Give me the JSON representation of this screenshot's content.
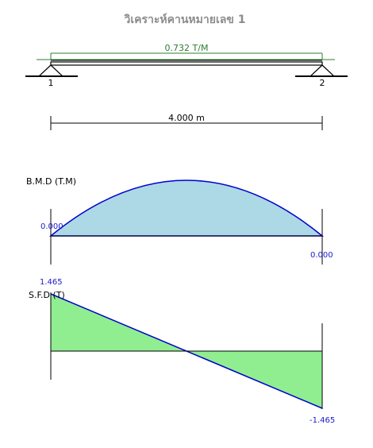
{
  "title": "วิเคราะห์คานหมายเลข 1",
  "load": {
    "label": "0.732 T/M",
    "value": 0.732,
    "unit": "T/M"
  },
  "supports": [
    {
      "label": "1"
    },
    {
      "label": "2"
    }
  ],
  "span": {
    "label": "4.000 m",
    "value": 4.0,
    "unit": "m"
  },
  "colors": {
    "title": "#8c8c8c",
    "load": "#2e7d32",
    "bmd_fill": "#add8e6",
    "sfd_fill": "#90ee90",
    "curve": "#0000cd",
    "value_text": "#1a1acc"
  },
  "chart_data": [
    {
      "type": "area",
      "title": "B.M.D (T.M)",
      "x": [
        0,
        4
      ],
      "values": [
        0.0,
        0.0
      ],
      "value_labels": [
        "0.000",
        "0.000"
      ],
      "shape": "parabola"
    },
    {
      "type": "area",
      "title": "S.F.D (T)",
      "x": [
        0,
        4
      ],
      "values": [
        1.465,
        -1.465
      ],
      "value_labels": [
        "1.465",
        "-1.465"
      ],
      "shape": "linear"
    }
  ]
}
